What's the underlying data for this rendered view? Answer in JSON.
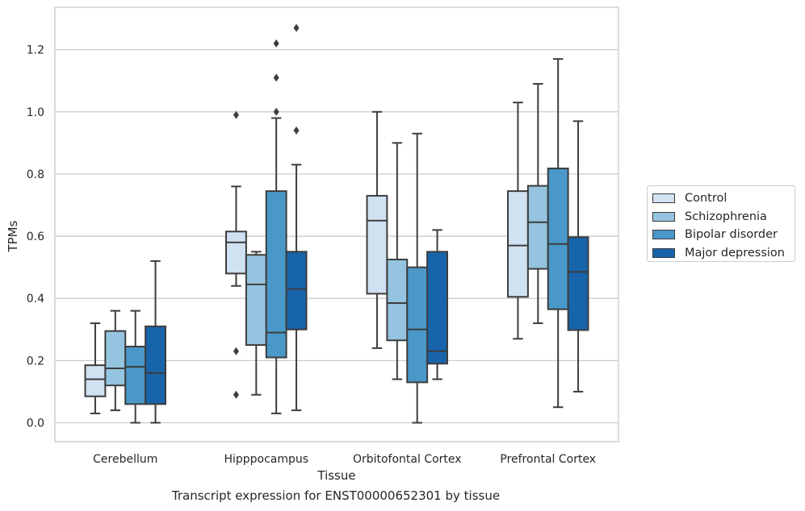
{
  "caption": "Transcript expression for ENST00000652301 by tissue",
  "chart_data": {
    "type": "boxplot",
    "xlabel": "Tissue",
    "ylabel": "TPMs",
    "ylim": [
      -0.06,
      1.34
    ],
    "yticks": [
      0.0,
      0.2,
      0.4,
      0.6,
      0.8,
      1.0,
      1.2
    ],
    "ytick_labels": [
      "0.0",
      "0.2",
      "0.4",
      "0.6",
      "0.8",
      "1.0",
      "1.2"
    ],
    "grid": "horizontal",
    "legend_position": "right",
    "categories": [
      "Cerebellum",
      "Hipppocampus",
      "Orbitofontal Cortex",
      "Prefrontal Cortex"
    ],
    "series": [
      {
        "name": "Control",
        "color": "#d0e1f2",
        "boxes": [
          {
            "whislo": 0.03,
            "q1": 0.085,
            "median": 0.14,
            "q3": 0.185,
            "whishi": 0.32,
            "fliers": []
          },
          {
            "whislo": 0.44,
            "q1": 0.48,
            "median": 0.58,
            "q3": 0.615,
            "whishi": 0.76,
            "fliers": [
              0.99,
              0.23,
              0.09
            ]
          },
          {
            "whislo": 0.24,
            "q1": 0.415,
            "median": 0.65,
            "q3": 0.73,
            "whishi": 1.0,
            "fliers": []
          },
          {
            "whislo": 0.27,
            "q1": 0.405,
            "median": 0.57,
            "q3": 0.745,
            "whishi": 1.03,
            "fliers": []
          }
        ]
      },
      {
        "name": "Schizophrenia",
        "color": "#94c4df",
        "boxes": [
          {
            "whislo": 0.04,
            "q1": 0.12,
            "median": 0.175,
            "q3": 0.295,
            "whishi": 0.36,
            "fliers": []
          },
          {
            "whislo": 0.09,
            "q1": 0.25,
            "median": 0.445,
            "q3": 0.54,
            "whishi": 0.55,
            "fliers": []
          },
          {
            "whislo": 0.14,
            "q1": 0.265,
            "median": 0.385,
            "q3": 0.525,
            "whishi": 0.9,
            "fliers": []
          },
          {
            "whislo": 0.32,
            "q1": 0.495,
            "median": 0.645,
            "q3": 0.762,
            "whishi": 1.09,
            "fliers": []
          }
        ]
      },
      {
        "name": "Bipolar disorder",
        "color": "#4a98c9",
        "boxes": [
          {
            "whislo": 0.0,
            "q1": 0.06,
            "median": 0.18,
            "q3": 0.245,
            "whishi": 0.36,
            "fliers": []
          },
          {
            "whislo": 0.03,
            "q1": 0.21,
            "median": 0.29,
            "q3": 0.745,
            "whishi": 0.98,
            "fliers": [
              1.22,
              1.11,
              1.0
            ]
          },
          {
            "whislo": 0.0,
            "q1": 0.13,
            "median": 0.3,
            "q3": 0.5,
            "whishi": 0.93,
            "fliers": []
          },
          {
            "whislo": 0.05,
            "q1": 0.365,
            "median": 0.575,
            "q3": 0.818,
            "whishi": 1.17,
            "fliers": []
          }
        ]
      },
      {
        "name": "Major depression",
        "color": "#1764ab",
        "boxes": [
          {
            "whislo": 0.0,
            "q1": 0.06,
            "median": 0.16,
            "q3": 0.31,
            "whishi": 0.52,
            "fliers": []
          },
          {
            "whislo": 0.04,
            "q1": 0.3,
            "median": 0.43,
            "q3": 0.55,
            "whishi": 0.83,
            "fliers": [
              1.27,
              0.94
            ]
          },
          {
            "whislo": 0.14,
            "q1": 0.19,
            "median": 0.23,
            "q3": 0.55,
            "whishi": 0.62,
            "fliers": []
          },
          {
            "whislo": 0.1,
            "q1": 0.298,
            "median": 0.485,
            "q3": 0.597,
            "whishi": 0.97,
            "fliers": []
          }
        ]
      }
    ]
  }
}
